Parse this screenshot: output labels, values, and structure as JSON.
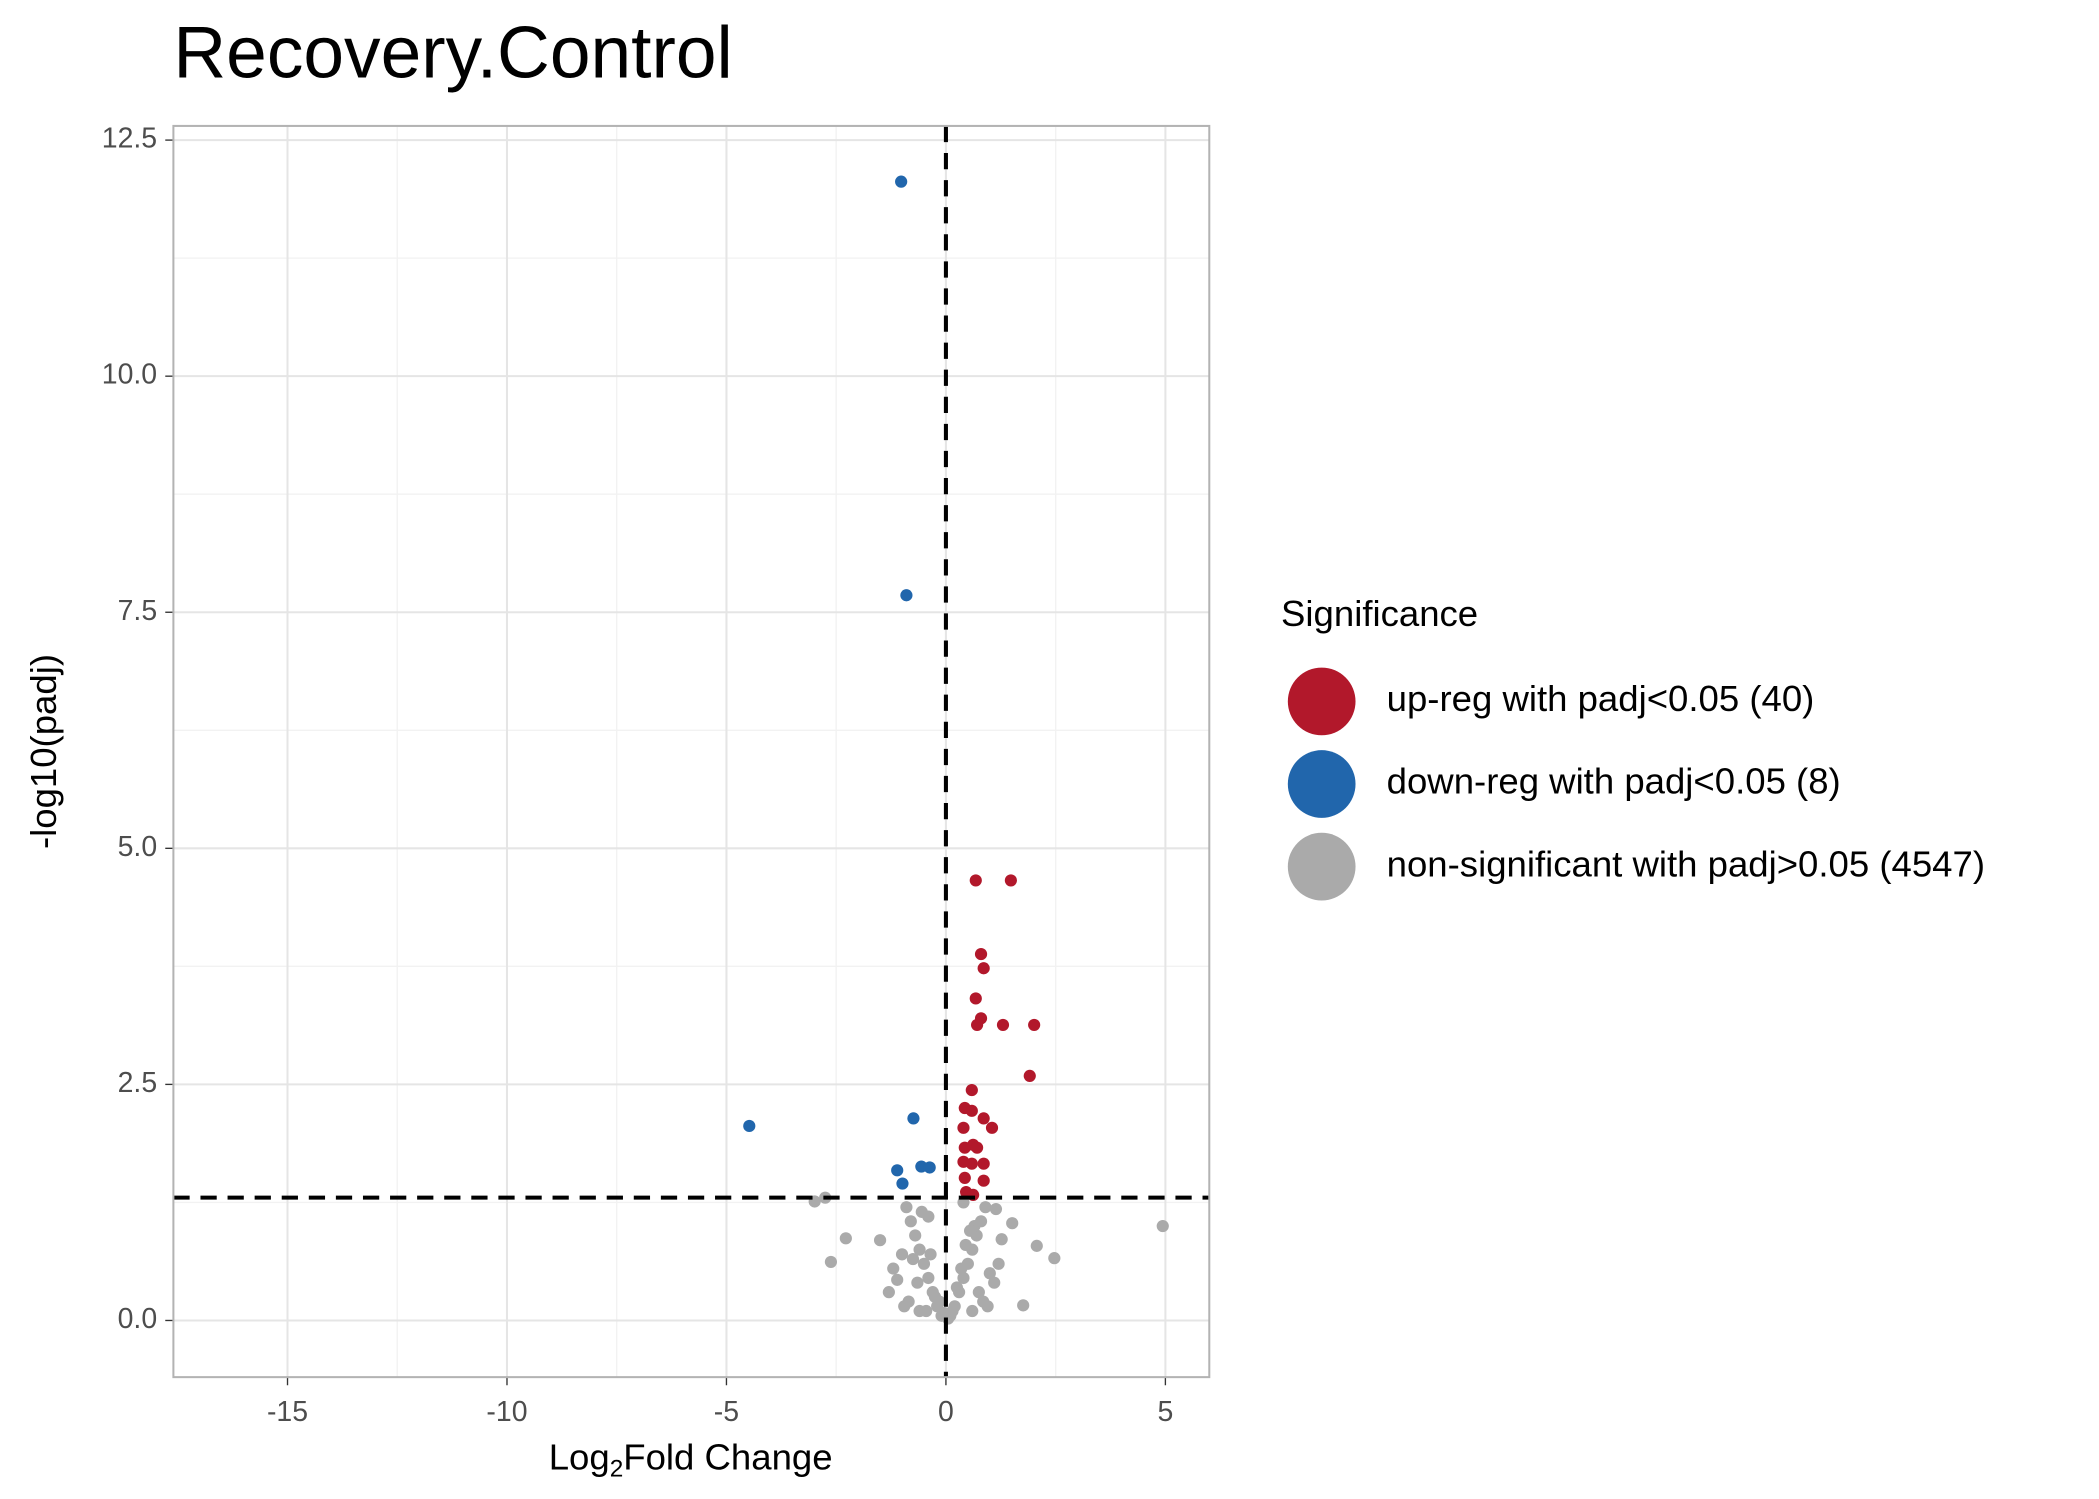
{
  "chart_data": {
    "type": "scatter",
    "title": "Recovery.Control",
    "x_label": [
      "Log",
      "2",
      "Fold Change"
    ],
    "y_label": "-log10(padj)",
    "legend_title": "Significance",
    "legend": "right",
    "grid": true,
    "xlim": [
      -17.6,
      6.0
    ],
    "ylim": [
      -0.6,
      12.65
    ],
    "xticks": [
      -15,
      -10,
      -5,
      0,
      5
    ],
    "yticks": [
      {
        "value": 0,
        "label": "0.0"
      },
      {
        "value": 2.5,
        "label": "2.5"
      },
      {
        "value": 5,
        "label": "5.0"
      },
      {
        "value": 7.5,
        "label": "7.5"
      },
      {
        "value": 10,
        "label": "10.0"
      },
      {
        "value": 12.5,
        "label": "12.5"
      }
    ],
    "thresholds": {
      "x": 0,
      "y": 1.301
    },
    "series": [
      {
        "name": "non-significant with padj>0.05 (4547)",
        "color": "#aaaaaa",
        "x": [
          4.94,
          -2.99,
          -2.75,
          1.76,
          2.47,
          2.07,
          -2.62,
          1.51,
          1.14,
          -2.28,
          -1.11,
          1.27,
          -1.5,
          -1.3,
          -0.9,
          -0.8,
          -0.7,
          -0.6,
          -0.5,
          -0.4,
          -0.3,
          -0.2,
          -0.1,
          0.1,
          0.2,
          0.3,
          0.4,
          0.5,
          0.6,
          0.7,
          0.8,
          0.9,
          1.0,
          -0.85,
          -0.65,
          -0.45,
          -0.25,
          0.25,
          0.45,
          0.65,
          0.85,
          -0.75,
          -0.55,
          0.35,
          0.55,
          0.75,
          -1.0,
          1.1,
          -0.35,
          0.15,
          -0.15,
          0.05,
          -0.05,
          0.95,
          -0.95,
          0.6,
          -0.6,
          1.2,
          -1.2,
          0.4,
          -0.4
        ],
        "y": [
          1.0,
          1.26,
          1.3,
          0.16,
          0.66,
          0.79,
          0.62,
          1.03,
          1.18,
          0.87,
          0.43,
          0.86,
          0.85,
          0.3,
          1.2,
          1.05,
          0.9,
          0.75,
          0.6,
          0.45,
          0.3,
          0.15,
          0.05,
          0.05,
          0.15,
          0.3,
          0.45,
          0.6,
          0.75,
          0.9,
          1.05,
          1.2,
          0.5,
          0.2,
          0.4,
          0.1,
          0.25,
          0.35,
          0.8,
          1.0,
          0.2,
          0.65,
          1.15,
          0.55,
          0.95,
          0.3,
          0.7,
          0.4,
          0.7,
          0.1,
          0.2,
          0.02,
          0.08,
          0.15,
          0.15,
          0.1,
          0.1,
          0.6,
          0.55,
          1.25,
          1.1
        ]
      },
      {
        "name": "up-reg with padj<0.05 (40)",
        "color": "#b2182b",
        "x": [
          0.68,
          1.48,
          0.8,
          0.86,
          0.68,
          0.8,
          0.71,
          1.3,
          2.01,
          1.91,
          0.59,
          0.43,
          0.59,
          0.86,
          1.05,
          0.4,
          0.62,
          0.43,
          0.71,
          0.4,
          0.86,
          0.59,
          0.86,
          0.43,
          0.46,
          0.62
        ],
        "y": [
          4.66,
          4.66,
          3.88,
          3.73,
          3.41,
          3.2,
          3.13,
          3.13,
          3.13,
          2.59,
          2.44,
          2.25,
          2.22,
          2.14,
          2.04,
          2.04,
          1.86,
          1.83,
          1.83,
          1.68,
          1.66,
          1.66,
          1.48,
          1.51,
          1.36,
          1.33
        ]
      },
      {
        "name": "down-reg with padj<0.05 (8)",
        "color": "#2166ac",
        "x": [
          -1.02,
          -0.9,
          -4.48,
          -0.74,
          -0.56,
          -0.37,
          -1.11,
          -0.99
        ],
        "y": [
          12.06,
          7.68,
          2.06,
          2.14,
          1.63,
          1.62,
          1.59,
          1.45
        ]
      }
    ],
    "legend_order": [
      1,
      2,
      0
    ]
  }
}
